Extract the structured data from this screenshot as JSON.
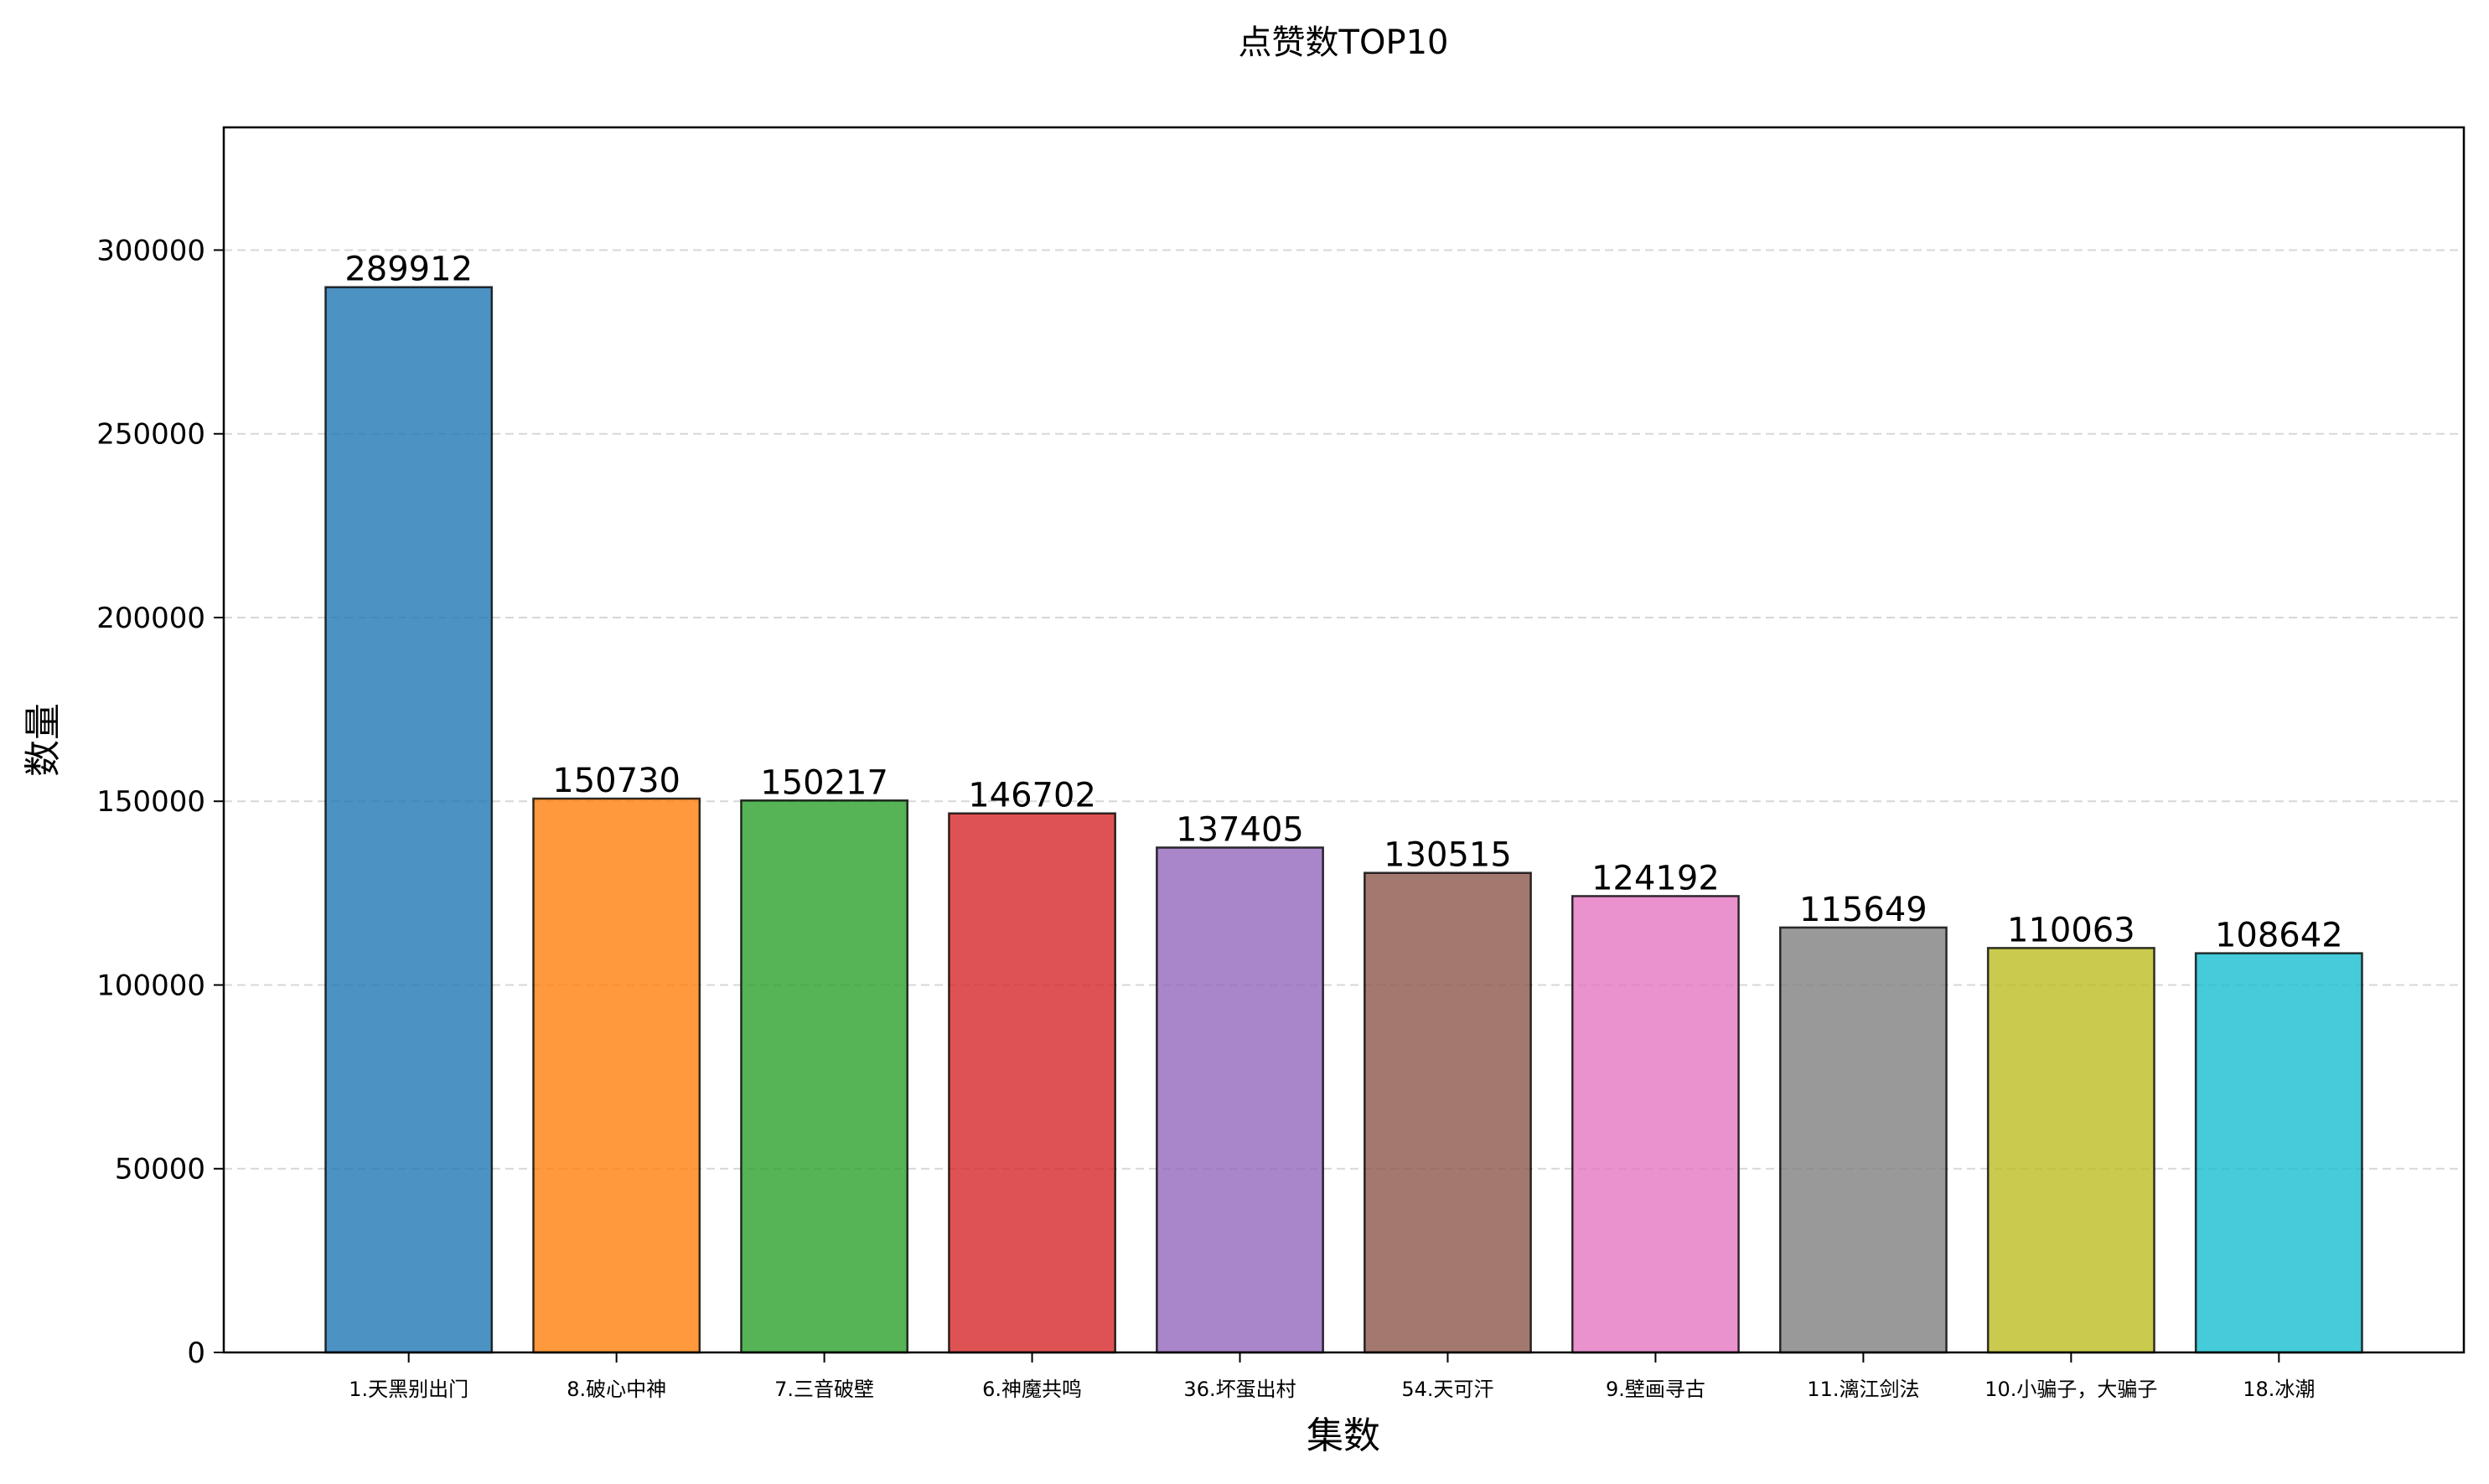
{
  "chart_data": {
    "type": "bar",
    "title": "点赞数TOP10",
    "xlabel": "集数",
    "ylabel": "数量",
    "categories": [
      "1.天黑别出门",
      "8.破心中神",
      "7.三音破壁",
      "6.神魔共鸣",
      "36.坏蛋出村",
      "54.天可汗",
      "9.壁画寻古",
      "11.漓江剑法",
      "10.小骗子，大骗子",
      "18.冰潮"
    ],
    "values": [
      289912,
      150730,
      150217,
      146702,
      137405,
      130515,
      124192,
      115649,
      110063,
      108642
    ],
    "data_labels": [
      "289912",
      "150730",
      "150217",
      "146702",
      "137405",
      "130515",
      "124192",
      "115649",
      "110063",
      "108642"
    ],
    "colors": [
      "#1f77b4",
      "#ff7f0e",
      "#2ca02c",
      "#d62728",
      "#9467bd",
      "#8c564b",
      "#e377c2",
      "#7f7f7f",
      "#bcbd22",
      "#17becf"
    ],
    "ylim": [
      0,
      333400
    ],
    "yticks": [
      0,
      50000,
      100000,
      150000,
      200000,
      250000,
      300000
    ],
    "ytick_labels": [
      "0",
      "50000",
      "100000",
      "150000",
      "200000",
      "250000",
      "300000"
    ],
    "grid": "y-dashed",
    "legend": "none"
  }
}
